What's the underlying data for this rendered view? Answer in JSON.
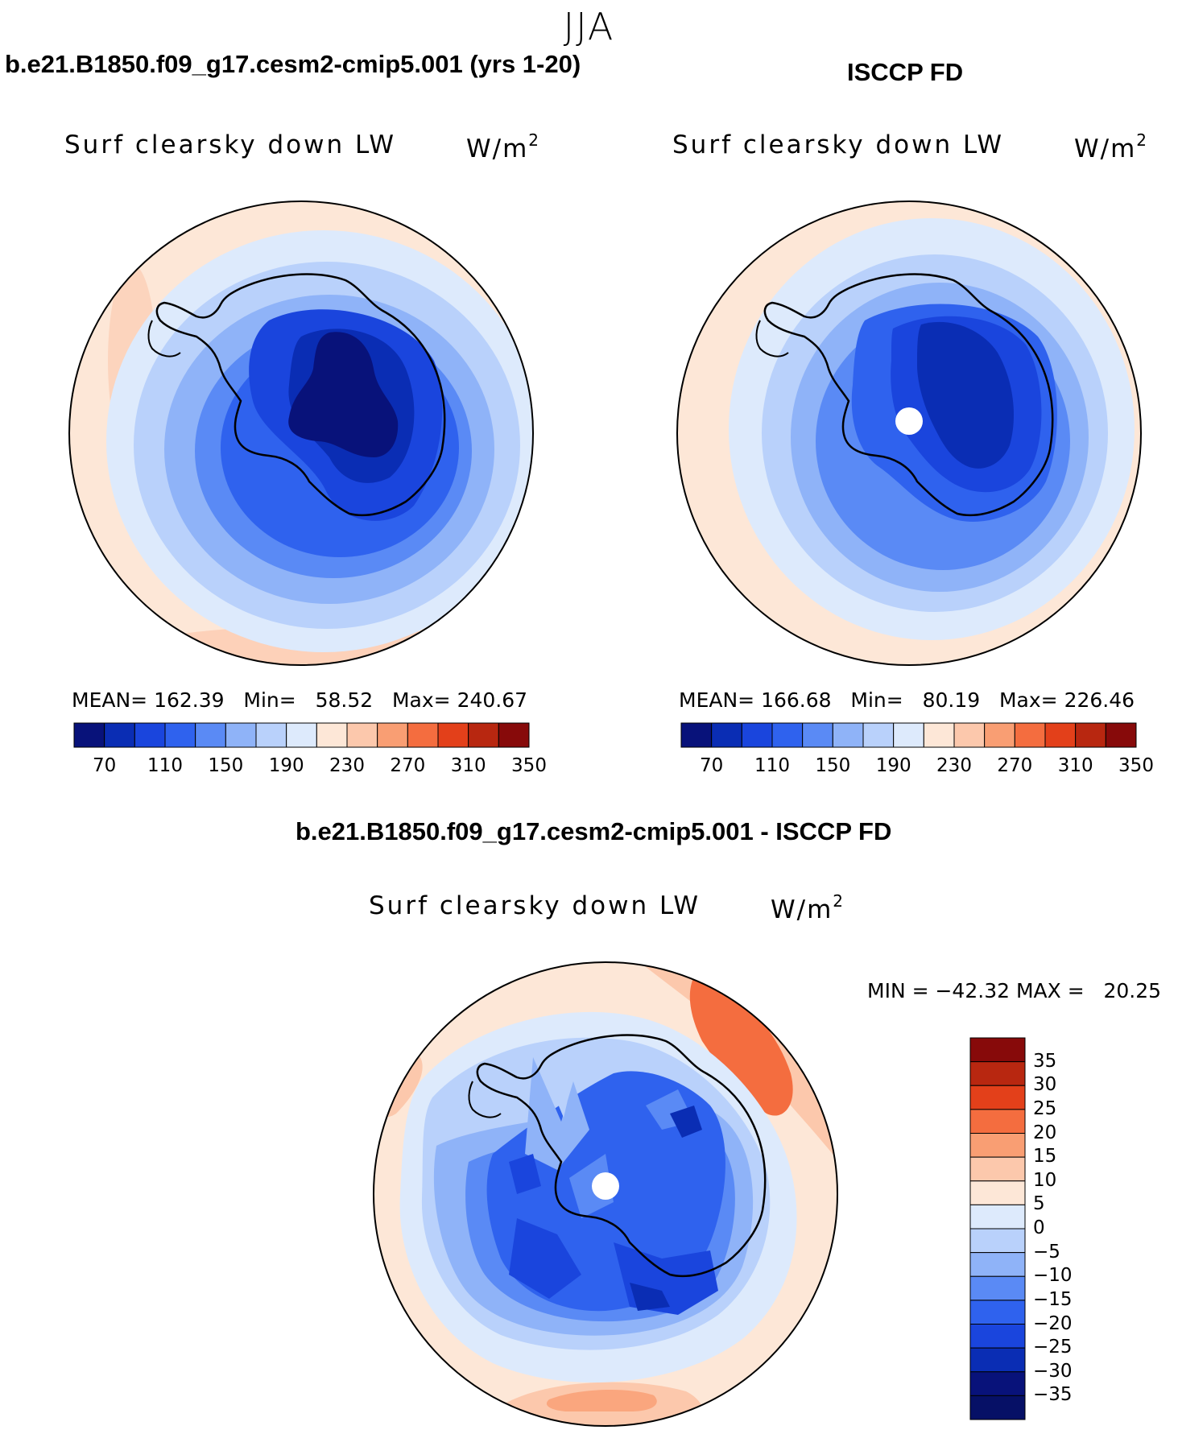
{
  "season": "JJA",
  "panels": [
    {
      "title": "b.e21.B1850.f09_g17.cesm2-cmip5.001 (yrs 1-20)",
      "variable": "Surf clearsky down LW",
      "units_base": "W/m",
      "units_exp": "2",
      "stats": {
        "mean_label": "MEAN=",
        "mean": "162.39",
        "min_label": "Min=",
        "min": "58.52",
        "max_label": "Max=",
        "max": "240.67"
      }
    },
    {
      "title": "ISCCP FD",
      "variable": "Surf clearsky down LW",
      "units_base": "W/m",
      "units_exp": "2",
      "stats": {
        "mean_label": "MEAN=",
        "mean": "166.68",
        "min_label": "Min=",
        "min": "80.19",
        "max_label": "Max=",
        "max": "226.46"
      }
    },
    {
      "title": "b.e21.B1850.f09_g17.cesm2-cmip5.001 - ISCCP FD",
      "variable": "Surf clearsky down LW",
      "units_base": "W/m",
      "units_exp": "2",
      "stats": {
        "minmax_text": "MIN = −42.32 MAX =   20.25"
      }
    }
  ],
  "colorbar_abs": {
    "labels": [
      "70",
      "110",
      "150",
      "190",
      "230",
      "270",
      "310",
      "350"
    ],
    "colors": [
      "#08127a",
      "#0a2db4",
      "#1a45dd",
      "#2f62ee",
      "#5a8af5",
      "#8fb3f8",
      "#b9d1fb",
      "#ddeafc",
      "#fde7d7",
      "#fcc8ac",
      "#f99e73",
      "#f46d3f",
      "#e3401a",
      "#b82710",
      "#870a0a"
    ]
  },
  "colorbar_diff": {
    "labels": [
      "35",
      "30",
      "25",
      "20",
      "15",
      "10",
      "5",
      "0",
      "−5",
      "−10",
      "−15",
      "−20",
      "−25",
      "−30",
      "−35"
    ],
    "colors": [
      "#870a0a",
      "#b82710",
      "#e3401a",
      "#f46d3f",
      "#f99e73",
      "#fcc8ac",
      "#fde7d7",
      "#ddeafc",
      "#b9d1fb",
      "#8fb3f8",
      "#5a8af5",
      "#2f62ee",
      "#1a45dd",
      "#0a2db4",
      "#08127a",
      "#061066"
    ]
  }
}
